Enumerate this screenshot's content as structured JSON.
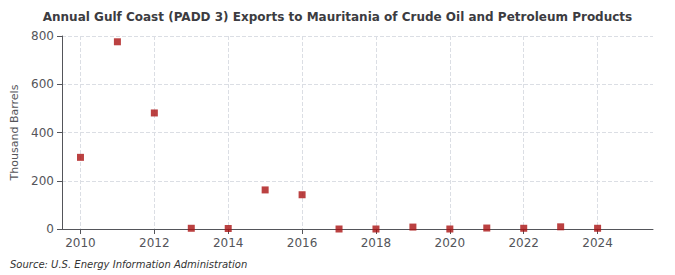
{
  "chart_data": {
    "type": "scatter",
    "title": "Annual Gulf Coast (PADD 3) Exports to Mauritania of Crude Oil and Petroleum Products",
    "ylabel": "Thousand Barrels",
    "annotations": [
      "Source: U.S. Energy Information Administration"
    ],
    "color": "#aa1111",
    "marker": "square",
    "xlim": [
      2009.5,
      2025.5
    ],
    "xticks": [
      2010,
      2012,
      2014,
      2016,
      2018,
      2020,
      2022,
      2024
    ],
    "ylim": [
      0,
      800
    ],
    "yticks": [
      0,
      200,
      400,
      600,
      800
    ],
    "grid": true,
    "x": [
      2010,
      2011,
      2012,
      2013,
      2014,
      2015,
      2016,
      2017,
      2018,
      2019,
      2020,
      2021,
      2022,
      2023,
      2024
    ],
    "values": [
      297,
      776,
      481,
      3,
      2,
      162,
      142,
      0,
      0,
      8,
      0,
      4,
      3,
      9,
      3
    ]
  }
}
